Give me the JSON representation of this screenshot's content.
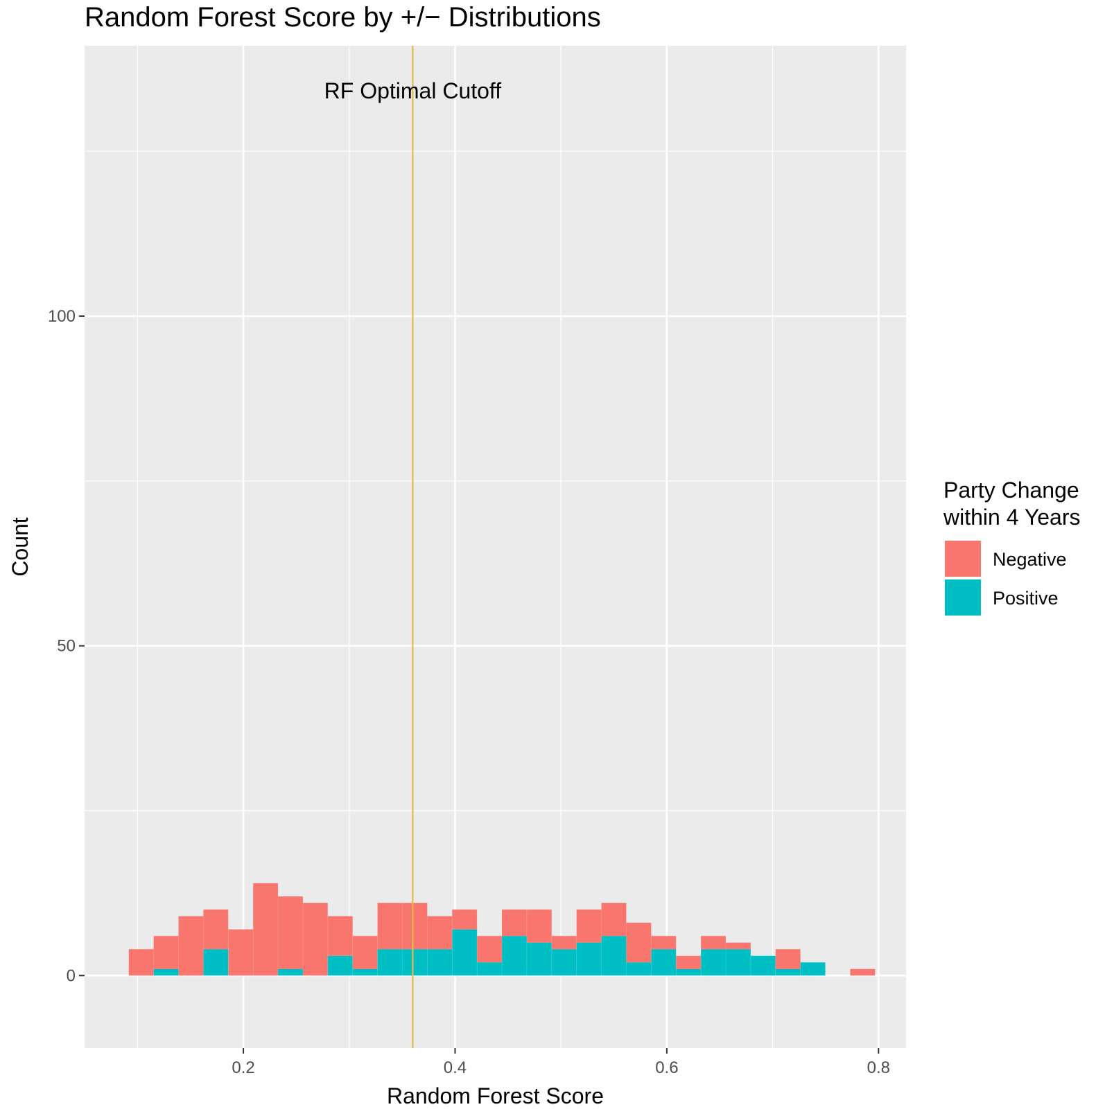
{
  "chart_data": {
    "type": "bar",
    "subtype": "stacked-histogram",
    "title": "Random Forest Score by +/− Distributions",
    "xlabel": "Random Forest Score",
    "ylabel": "Count",
    "xlim": [
      0.05,
      0.826
    ],
    "ylim": [
      -11,
      141
    ],
    "x_ticks": [
      0.2,
      0.4,
      0.6,
      0.8
    ],
    "x_tick_labels": [
      "0.2",
      "0.4",
      "0.6",
      "0.8"
    ],
    "y_ticks": [
      0,
      50,
      100
    ],
    "y_tick_labels": [
      "0",
      "50",
      "100"
    ],
    "grid": true,
    "bin_width": 0.0235,
    "bins": [
      0.1035,
      0.127,
      0.1505,
      0.174,
      0.1975,
      0.221,
      0.2445,
      0.268,
      0.2915,
      0.315,
      0.3385,
      0.362,
      0.3855,
      0.409,
      0.4325,
      0.456,
      0.4795,
      0.503,
      0.5265,
      0.55,
      0.5735,
      0.597,
      0.6205,
      0.644,
      0.6675,
      0.691,
      0.7145,
      0.738,
      0.7615,
      0.785
    ],
    "series": [
      {
        "name": "Negative",
        "color": "#F8766D",
        "values": [
          4,
          5,
          9,
          6,
          7,
          14,
          11,
          11,
          6,
          5,
          7,
          7,
          5,
          3,
          4,
          4,
          5,
          2,
          5,
          5,
          6,
          2,
          2,
          2,
          1,
          0,
          3,
          0,
          0,
          1
        ]
      },
      {
        "name": "Positive",
        "color": "#00BFC4",
        "values": [
          0,
          1,
          0,
          4,
          0,
          0,
          1,
          0,
          3,
          1,
          4,
          4,
          4,
          7,
          2,
          6,
          5,
          4,
          5,
          6,
          2,
          4,
          1,
          4,
          4,
          3,
          1,
          2,
          0,
          0
        ]
      }
    ],
    "reference_line": {
      "x": 0.36,
      "label": "RF Optimal Cutoff",
      "color": "#E8B84A"
    },
    "legend": {
      "title_lines": [
        "Party Change",
        "within 4 Years"
      ],
      "position": "right"
    },
    "panel_background": "#EBEBEB",
    "grid_color": "#FFFFFF"
  }
}
